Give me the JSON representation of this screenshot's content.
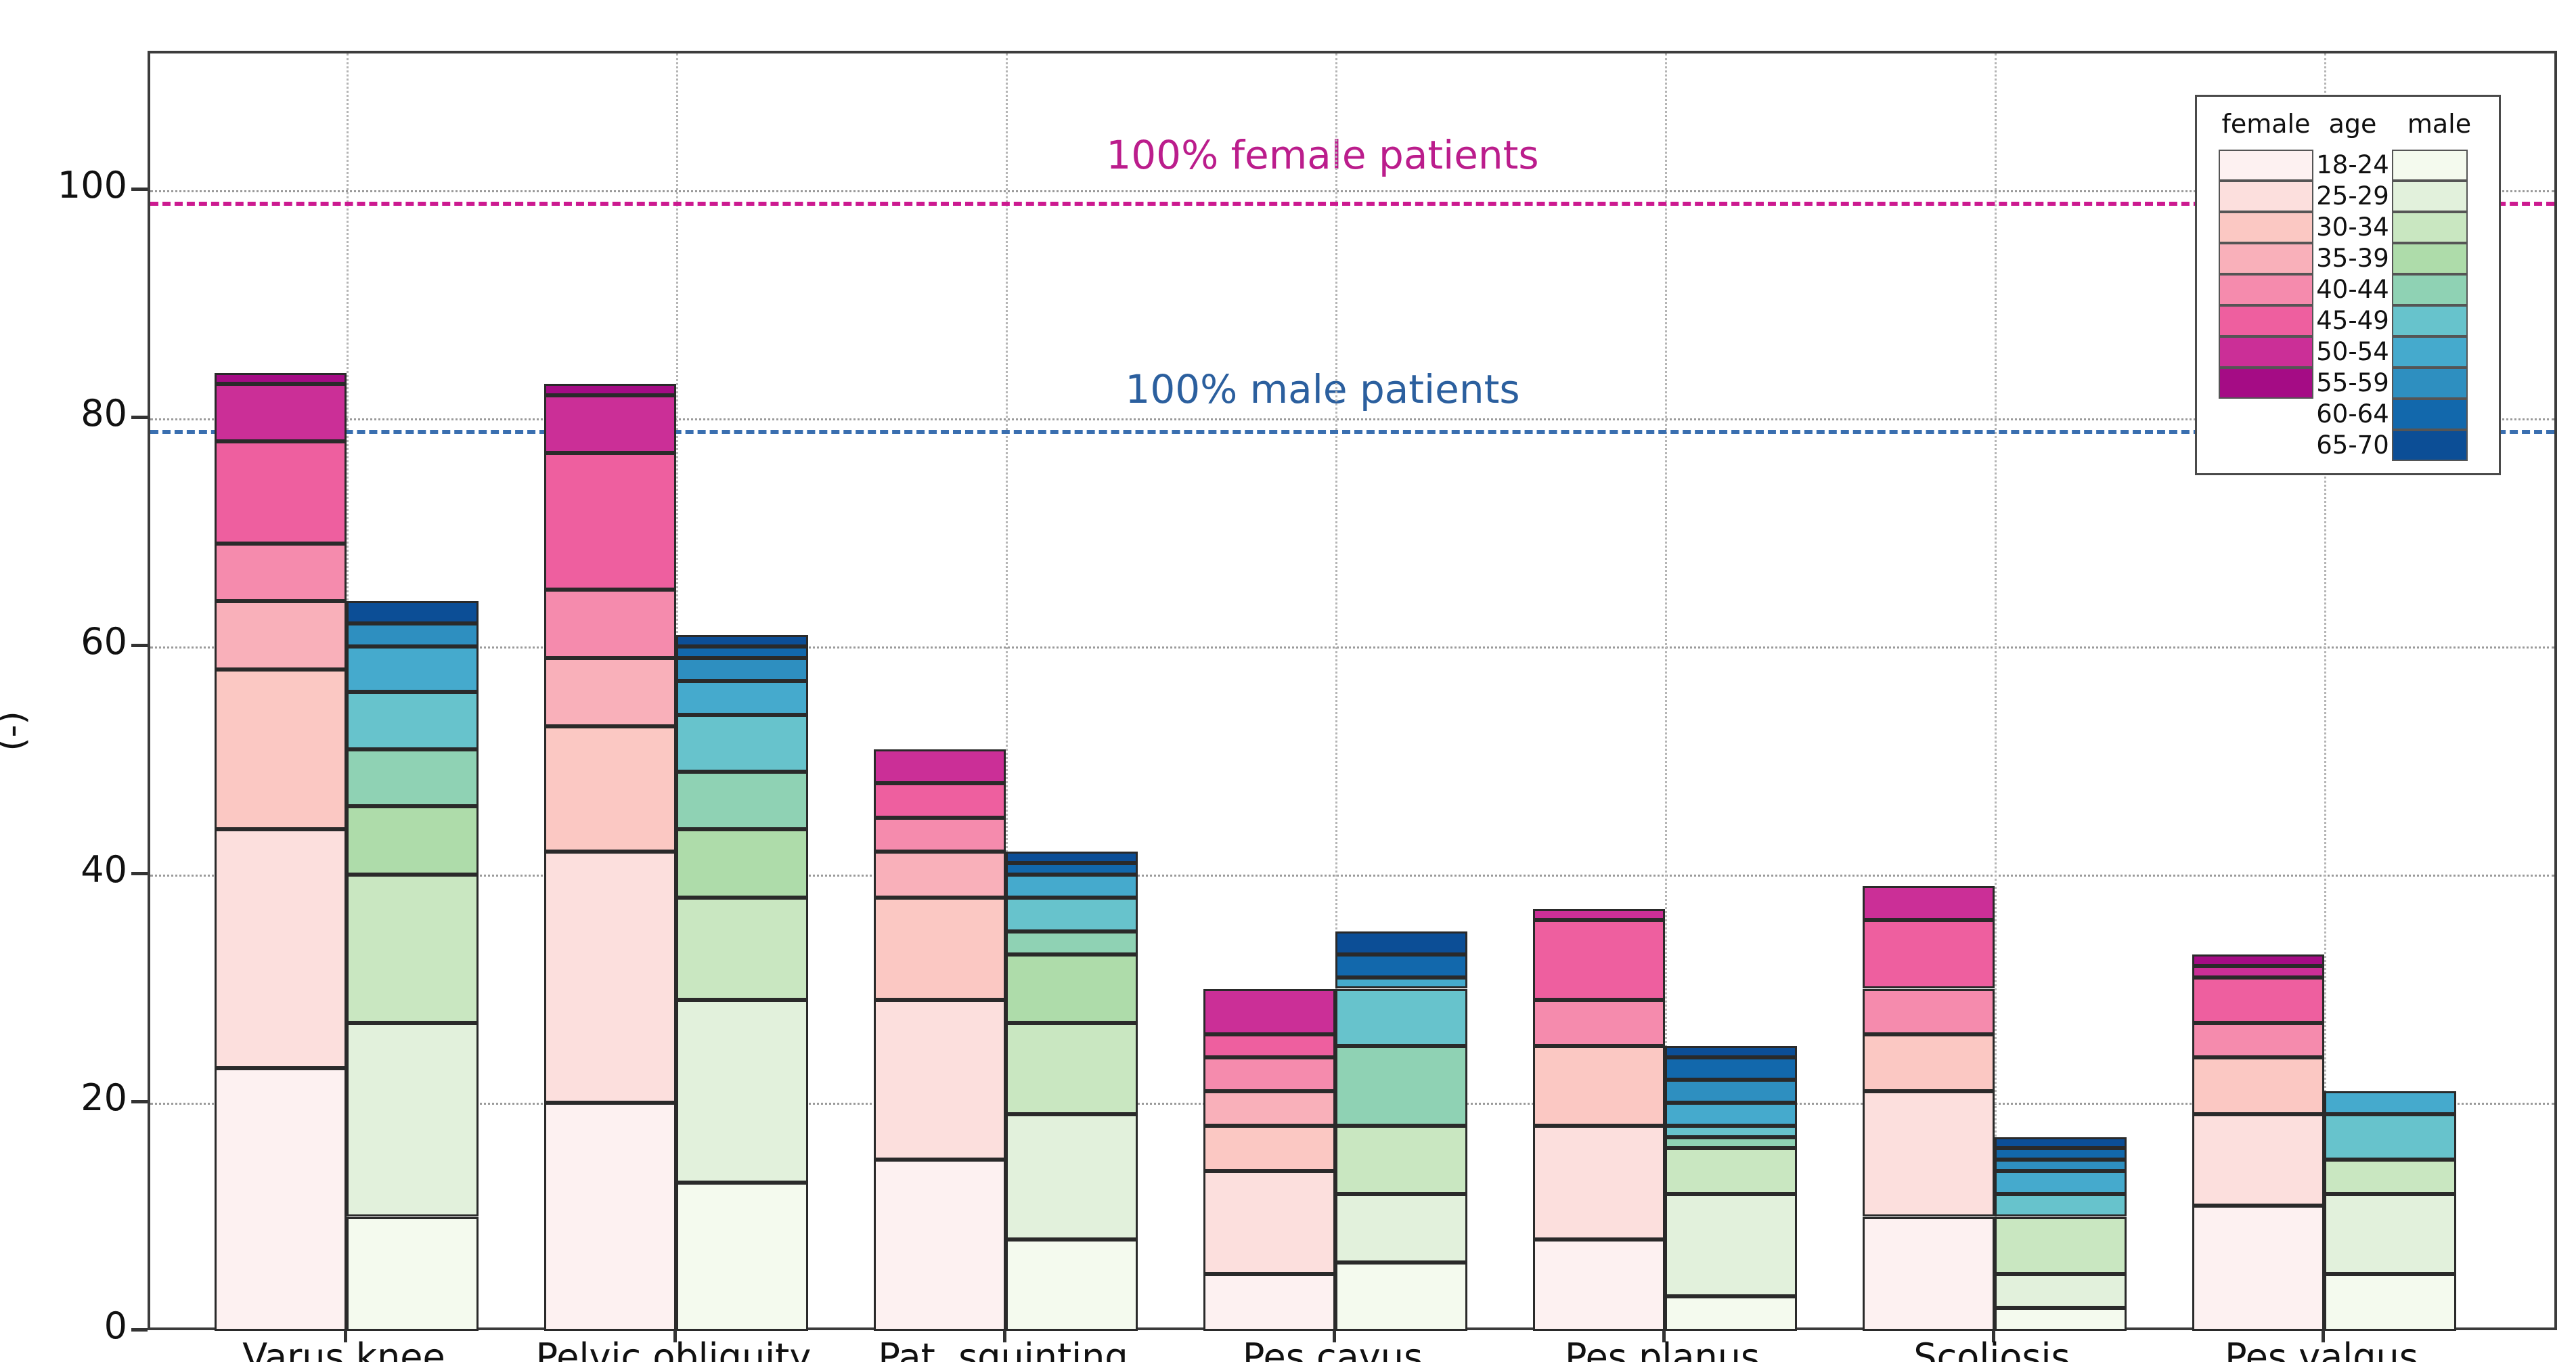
{
  "figure": {
    "legend_headers": {
      "female": "female",
      "age": "age",
      "male": "male"
    }
  },
  "chart_data": {
    "type": "bar",
    "stacked": true,
    "grouped_by": "gender",
    "title": "",
    "xlabel": "",
    "ylabel": "Malalignment frequency (-)",
    "ylim": [
      0,
      112
    ],
    "yticks": [
      0,
      20,
      40,
      60,
      80,
      100
    ],
    "grid": "dotted horizontal at yticks, dotted vertical at category centers",
    "legend_position": "upper right",
    "categories": [
      "Varus knee",
      "Pelvic obliquity",
      "Pat. squinting",
      "Pes cavus",
      "Pes planus",
      "Scoliosis",
      "Pes valgus"
    ],
    "age_groups": [
      "18-24",
      "25-29",
      "30-34",
      "35-39",
      "40-44",
      "45-49",
      "50-54",
      "55-59",
      "60-64",
      "65-70"
    ],
    "colors": {
      "female": [
        "#fdf1f1",
        "#fcdfdd",
        "#fbc8c3",
        "#f9b0ba",
        "#f58bad",
        "#ee5f9f",
        "#cb2f97",
        "#a50c85"
      ],
      "male": [
        "#f4faee",
        "#e2f1dc",
        "#c9e7c1",
        "#aedcaa",
        "#8fd2b4",
        "#67c3cc",
        "#45aacd",
        "#2e8fc0",
        "#1268ac",
        "#0c4e96"
      ],
      "frame": "#3c3c3c",
      "segment_border": "#2a2a2a"
    },
    "series": [
      {
        "name": "female",
        "age_groups_used": [
          "18-24",
          "25-29",
          "30-34",
          "35-39",
          "40-44",
          "45-49",
          "50-54",
          "55-59"
        ],
        "totals": [
          84,
          83,
          51,
          30,
          37,
          39,
          33
        ],
        "segments": [
          [
            23,
            21,
            14,
            6,
            5,
            9,
            5,
            1
          ],
          [
            20,
            22,
            11,
            6,
            6,
            12,
            5,
            1
          ],
          [
            15,
            14,
            9,
            4,
            3,
            3,
            3,
            0
          ],
          [
            5,
            9,
            4,
            3,
            3,
            2,
            4,
            0
          ],
          [
            8,
            10,
            7,
            0,
            4,
            7,
            1,
            0
          ],
          [
            10,
            11,
            5,
            0,
            4,
            6,
            3,
            0
          ],
          [
            11,
            8,
            5,
            0,
            3,
            4,
            1,
            1
          ]
        ]
      },
      {
        "name": "male",
        "age_groups_used": [
          "18-24",
          "25-29",
          "30-34",
          "35-39",
          "40-44",
          "45-49",
          "50-54",
          "55-59",
          "60-64",
          "65-70"
        ],
        "totals": [
          64,
          61,
          42,
          35,
          25,
          17,
          21
        ],
        "segments": [
          [
            10,
            17,
            13,
            6,
            5,
            5,
            4,
            2,
            0,
            2
          ],
          [
            13,
            16,
            9,
            6,
            5,
            5,
            3,
            2,
            1,
            1
          ],
          [
            8,
            11,
            8,
            6,
            2,
            3,
            2,
            0,
            1,
            1
          ],
          [
            6,
            6,
            6,
            0,
            7,
            5,
            1,
            0,
            2,
            2
          ],
          [
            3,
            9,
            4,
            0,
            1,
            1,
            2,
            2,
            2,
            1
          ],
          [
            2,
            3,
            5,
            0,
            0,
            2,
            2,
            1,
            1,
            1
          ],
          [
            5,
            7,
            3,
            0,
            0,
            4,
            2,
            0,
            0,
            0
          ]
        ]
      }
    ],
    "reference_lines": [
      {
        "label": "100% female patients",
        "value": 99,
        "color": "#cc1a90",
        "text_color": "#bb1d8c",
        "style": "dashed"
      },
      {
        "label": "100% male patients",
        "value": 79,
        "color": "#3a6fb0",
        "text_color": "#2b5f9e",
        "style": "dashed"
      }
    ]
  }
}
